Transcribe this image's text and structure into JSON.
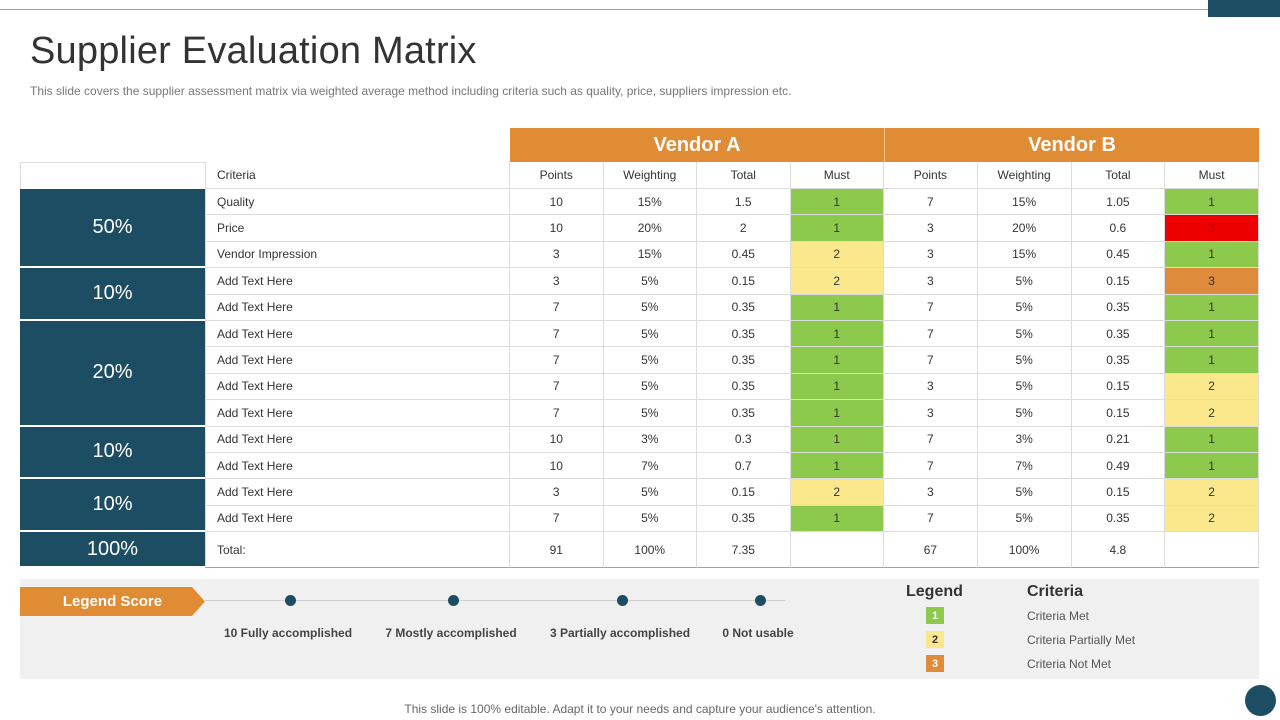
{
  "title": "Supplier Evaluation Matrix",
  "subtitle": "This slide covers the supplier  assessment matrix via weighted average method including criteria such as quality, price, suppliers impression etc.",
  "vendors": {
    "a": "Vendor A",
    "b": "Vendor B"
  },
  "columns": {
    "criteria": "Criteria",
    "points": "Points",
    "weighting": "Weighting",
    "total": "Total",
    "must": "Must"
  },
  "groups": [
    "50%",
    "10%",
    "20%",
    "10%",
    "10%",
    "100%"
  ],
  "rows": [
    {
      "criteria": "Quality",
      "a": [
        "10",
        "15%",
        "1.5",
        "1"
      ],
      "b": [
        "7",
        "15%",
        "1.05",
        "1"
      ]
    },
    {
      "criteria": "Price",
      "a": [
        "10",
        "20%",
        "2",
        "1"
      ],
      "b": [
        "3",
        "20%",
        "0.6",
        "3"
      ]
    },
    {
      "criteria": "Vendor Impression",
      "a": [
        "3",
        "15%",
        "0.45",
        "2"
      ],
      "b": [
        "3",
        "15%",
        "0.45",
        "1"
      ]
    },
    {
      "criteria": "Add Text Here",
      "a": [
        "3",
        "5%",
        "0.15",
        "2"
      ],
      "b": [
        "3",
        "5%",
        "0.15",
        "3"
      ]
    },
    {
      "criteria": "Add Text Here",
      "a": [
        "7",
        "5%",
        "0.35",
        "1"
      ],
      "b": [
        "7",
        "5%",
        "0.35",
        "1"
      ]
    },
    {
      "criteria": "Add Text Here",
      "a": [
        "7",
        "5%",
        "0.35",
        "1"
      ],
      "b": [
        "7",
        "5%",
        "0.35",
        "1"
      ]
    },
    {
      "criteria": "Add Text Here",
      "a": [
        "7",
        "5%",
        "0.35",
        "1"
      ],
      "b": [
        "7",
        "5%",
        "0.35",
        "1"
      ]
    },
    {
      "criteria": "Add Text Here",
      "a": [
        "7",
        "5%",
        "0.35",
        "1"
      ],
      "b": [
        "3",
        "5%",
        "0.15",
        "2"
      ]
    },
    {
      "criteria": "Add Text Here",
      "a": [
        "7",
        "5%",
        "0.35",
        "1"
      ],
      "b": [
        "3",
        "5%",
        "0.15",
        "2"
      ]
    },
    {
      "criteria": "Add Text Here",
      "a": [
        "10",
        "3%",
        "0.3",
        "1"
      ],
      "b": [
        "7",
        "3%",
        "0.21",
        "1"
      ]
    },
    {
      "criteria": "Add Text Here",
      "a": [
        "10",
        "7%",
        "0.7",
        "1"
      ],
      "b": [
        "7",
        "7%",
        "0.49",
        "1"
      ]
    },
    {
      "criteria": "Add Text Here",
      "a": [
        "3",
        "5%",
        "0.15",
        "2"
      ],
      "b": [
        "3",
        "5%",
        "0.15",
        "2"
      ]
    },
    {
      "criteria": "Add Text Here",
      "a": [
        "7",
        "5%",
        "0.35",
        "1"
      ],
      "b": [
        "7",
        "5%",
        "0.35",
        "2"
      ]
    }
  ],
  "totals": {
    "label": "Total:",
    "a": [
      "91",
      "100%",
      "7.35",
      ""
    ],
    "b": [
      "67",
      "100%",
      "4.8",
      ""
    ]
  },
  "must_colors": {
    "1": "#8dc94d",
    "2": "#fbe78c",
    "3": "#df8b3c",
    "price_b": "#ee0000"
  },
  "legend_score": {
    "label": "Legend Score",
    "items": [
      "10 Fully  accomplished",
      "7 Mostly accomplished",
      "3 Partially accomplished",
      "0 Not usable"
    ]
  },
  "legend": {
    "legend_head": "Legend",
    "criteria_head": "Criteria",
    "items": [
      {
        "code": "1",
        "text": "Criteria Met"
      },
      {
        "code": "2",
        "text": "Criteria Partially Met"
      },
      {
        "code": "3",
        "text": "Criteria Not Met"
      }
    ]
  },
  "footer": "This slide is 100% editable. Adapt it to your needs and capture your audience's attention."
}
